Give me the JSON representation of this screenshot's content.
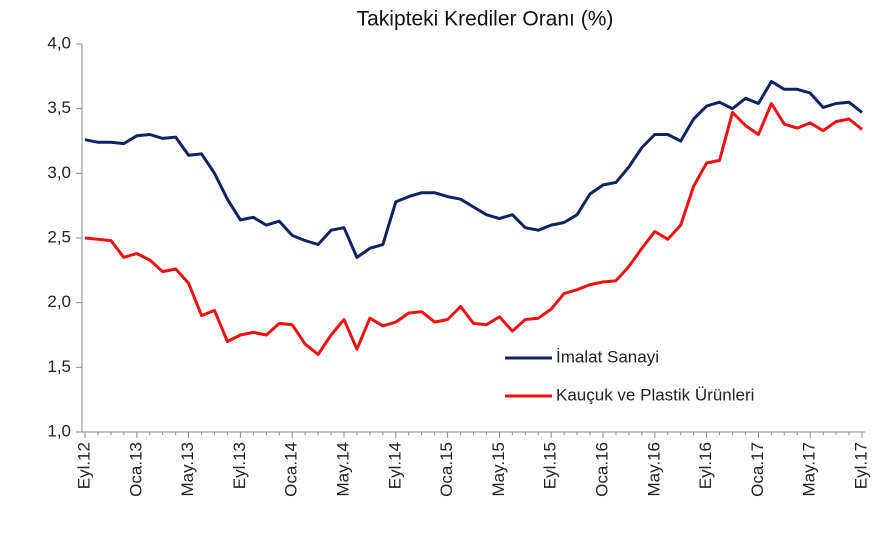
{
  "chart_data": {
    "type": "line",
    "title": "Takipteki Krediler Oranı (%)",
    "categories": [
      "Eyl.12",
      null,
      null,
      null,
      "Oca.13",
      null,
      null,
      null,
      "May.13",
      null,
      null,
      null,
      "Eyl.13",
      null,
      null,
      null,
      "Oca.14",
      null,
      null,
      null,
      "May.14",
      null,
      null,
      null,
      "Eyl.14",
      null,
      null,
      null,
      "Oca.15",
      null,
      null,
      null,
      "May.15",
      null,
      null,
      null,
      "Eyl.15",
      null,
      null,
      null,
      "Oca.16",
      null,
      null,
      null,
      "May.16",
      null,
      null,
      null,
      "Eyl.16",
      null,
      null,
      null,
      "Oca.17",
      null,
      null,
      null,
      "May.17",
      null,
      null,
      null,
      "Eyl.17"
    ],
    "series": [
      {
        "name": "İmalat Sanayi",
        "color": "#0d2460",
        "values": [
          3.26,
          3.24,
          3.24,
          3.23,
          3.29,
          3.3,
          3.27,
          3.28,
          3.14,
          3.15,
          3.0,
          2.8,
          2.64,
          2.66,
          2.6,
          2.63,
          2.52,
          2.48,
          2.45,
          2.56,
          2.58,
          2.35,
          2.42,
          2.45,
          2.78,
          2.82,
          2.85,
          2.85,
          2.82,
          2.8,
          2.74,
          2.68,
          2.65,
          2.68,
          2.58,
          2.56,
          2.6,
          2.62,
          2.68,
          2.84,
          2.91,
          2.93,
          3.05,
          3.2,
          3.3,
          3.3,
          3.25,
          3.42,
          3.52,
          3.55,
          3.5,
          3.58,
          3.54,
          3.71,
          3.65,
          3.65,
          3.62,
          3.51,
          3.54,
          3.55,
          3.47
        ]
      },
      {
        "name": "Kauçuk ve Plastik Ürünleri",
        "color": "#f01010",
        "values": [
          2.5,
          2.49,
          2.48,
          2.35,
          2.38,
          2.33,
          2.24,
          2.26,
          2.15,
          1.9,
          1.94,
          1.7,
          1.75,
          1.77,
          1.75,
          1.84,
          1.83,
          1.68,
          1.6,
          1.75,
          1.87,
          1.64,
          1.88,
          1.82,
          1.85,
          1.92,
          1.93,
          1.85,
          1.87,
          1.97,
          1.84,
          1.83,
          1.89,
          1.78,
          1.87,
          1.88,
          1.95,
          2.07,
          2.1,
          2.14,
          2.16,
          2.17,
          2.28,
          2.42,
          2.55,
          2.49,
          2.6,
          2.9,
          3.08,
          3.1,
          3.47,
          3.37,
          3.3,
          3.54,
          3.38,
          3.35,
          3.39,
          3.33,
          3.4,
          3.42,
          3.34
        ]
      }
    ],
    "ylim": [
      1,
      4
    ],
    "yticks": [
      {
        "value": 1,
        "label": "1,0"
      },
      {
        "value": 1.5,
        "label": "1,5"
      },
      {
        "value": 2,
        "label": "2,0"
      },
      {
        "value": 2.5,
        "label": "2,5"
      },
      {
        "value": 3,
        "label": "3,0"
      },
      {
        "value": 3.5,
        "label": "3,5"
      },
      {
        "value": 4,
        "label": "4,0"
      }
    ],
    "legend": "center-right"
  }
}
